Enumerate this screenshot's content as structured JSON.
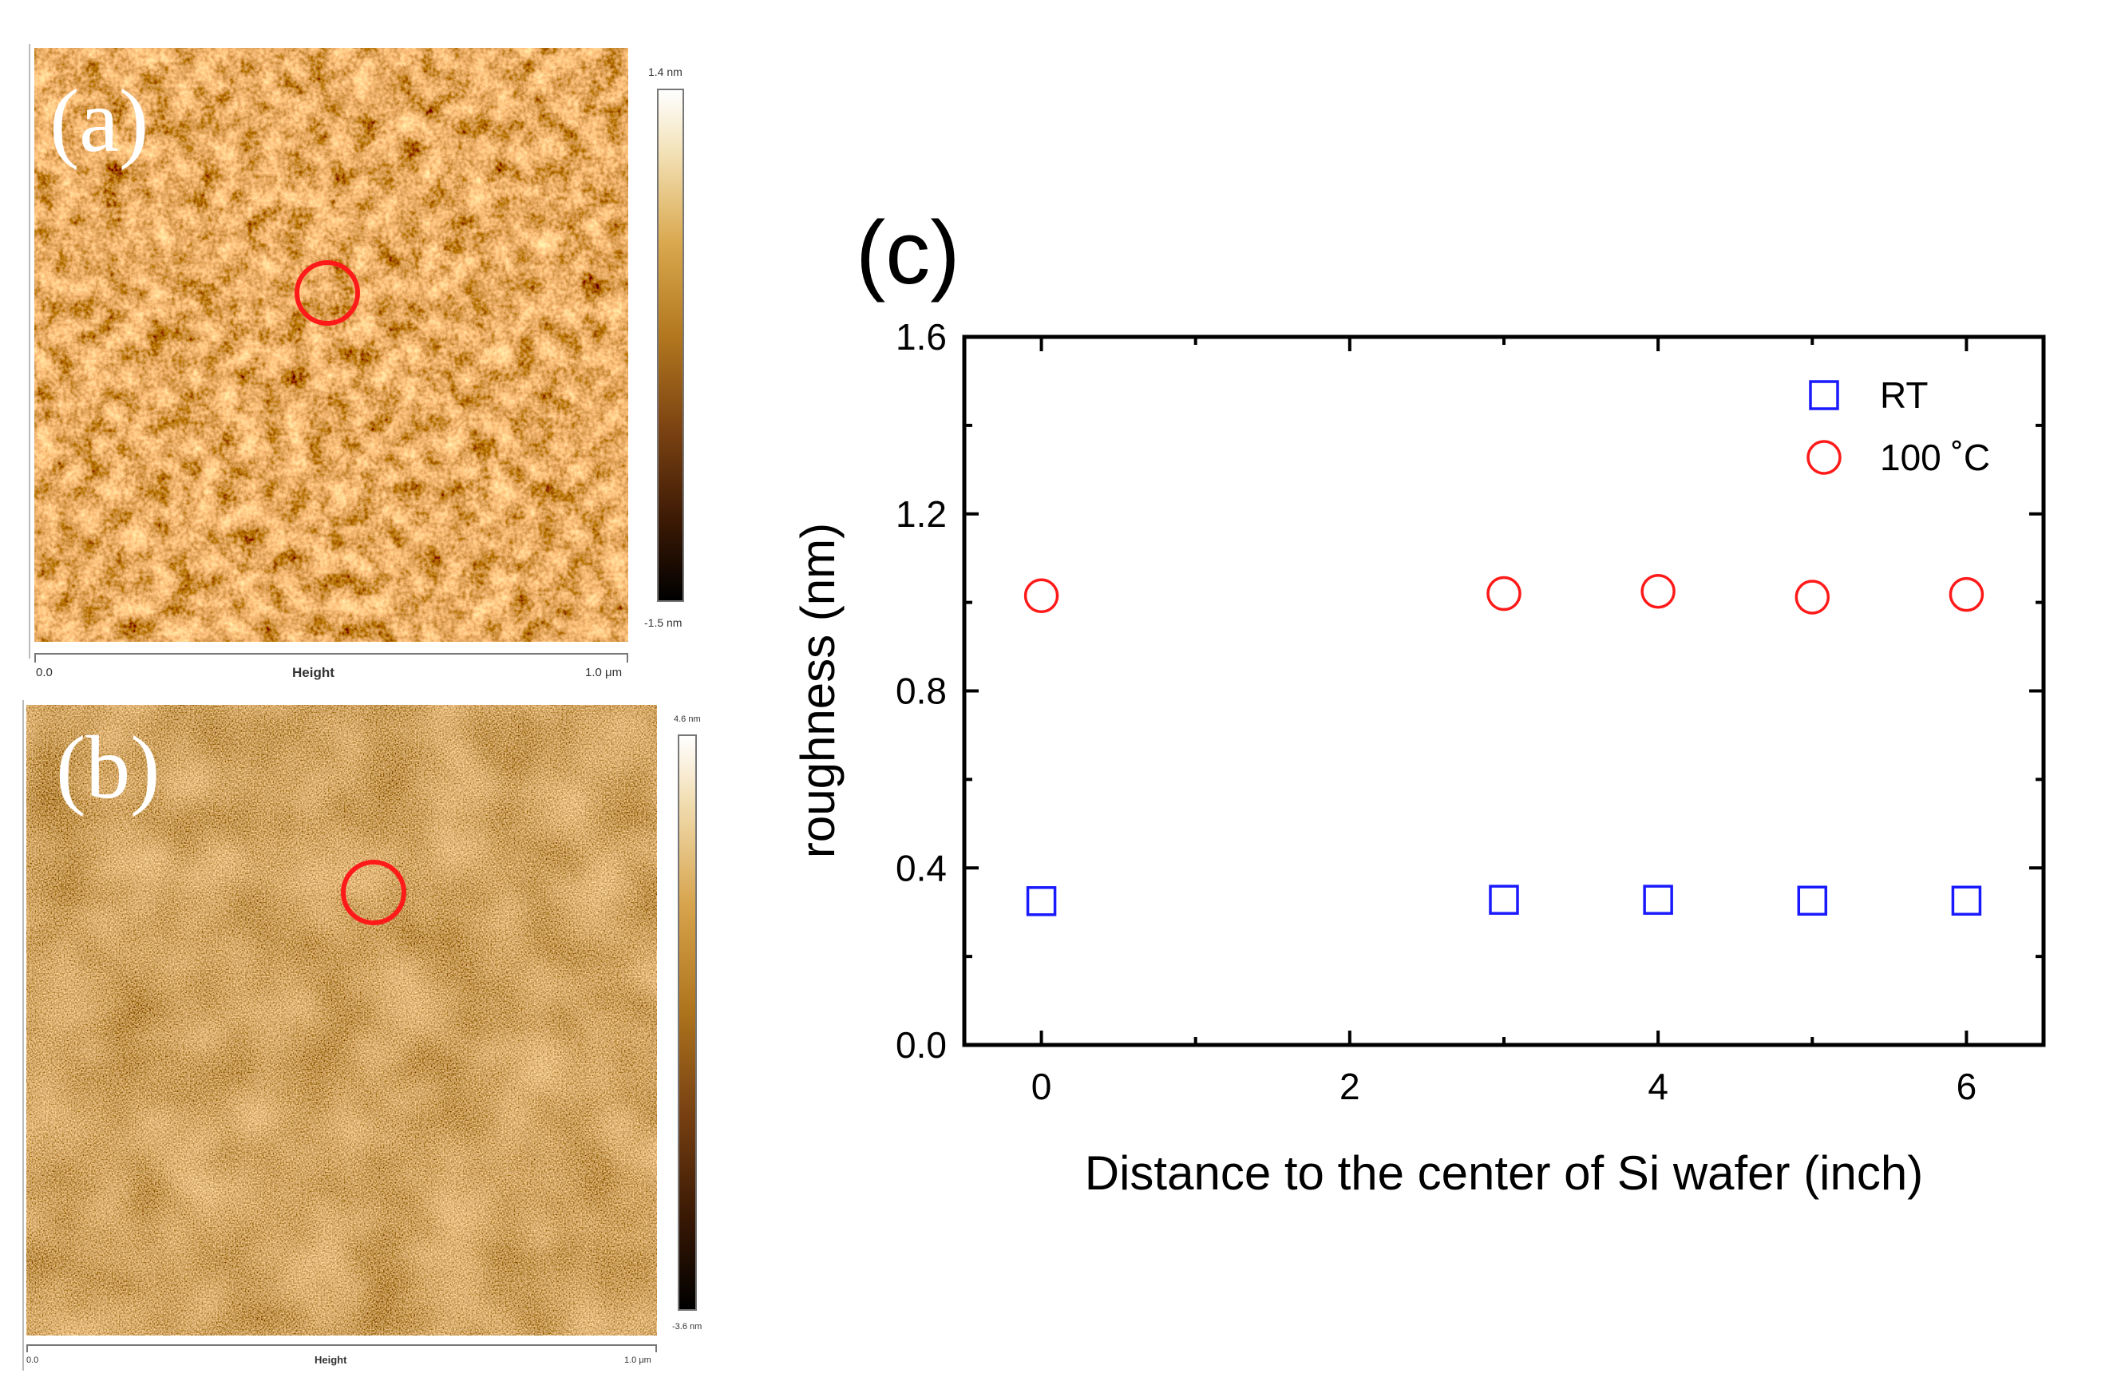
{
  "panel_a": {
    "label": "(a)",
    "colorbar_max": "1.4 nm",
    "colorbar_min": "-1.5 nm",
    "x_start": "0.0",
    "x_end": "1.0 μm",
    "axis_title": "Height",
    "colors": {
      "marker": "#ff1a1a"
    }
  },
  "panel_b": {
    "label": "(b)",
    "colorbar_max": "4.6 nm",
    "colorbar_min": "-3.6 nm",
    "x_start": "0.0",
    "x_end": "1.0 μm",
    "axis_title": "Height",
    "colors": {
      "marker": "#ff1a1a"
    }
  },
  "chart_data": {
    "type": "scatter",
    "panel_label": "(c)",
    "title": "",
    "xlabel": "Distance to the center of Si wafer (inch)",
    "ylabel": "roughness (nm)",
    "xlim": [
      -0.5,
      6.5
    ],
    "ylim": [
      0.0,
      1.6
    ],
    "xticks": [
      0,
      2,
      4,
      6
    ],
    "yticks": [
      0.0,
      0.4,
      0.8,
      1.2,
      1.6
    ],
    "xtick_labels": [
      "0",
      "2",
      "4",
      "6"
    ],
    "ytick_labels": [
      "0.0",
      "0.4",
      "0.8",
      "1.2",
      "1.6"
    ],
    "legend_position": "top-right",
    "series": [
      {
        "name": "RT",
        "marker": "square",
        "color": "#1a1aff",
        "x": [
          0,
          3,
          4,
          5,
          6
        ],
        "y": [
          0.325,
          0.328,
          0.328,
          0.326,
          0.326
        ]
      },
      {
        "name": "100 ˚C",
        "marker": "circle",
        "color": "#ff1a1a",
        "x": [
          0,
          3,
          4,
          5,
          6
        ],
        "y": [
          1.015,
          1.02,
          1.025,
          1.012,
          1.018
        ]
      }
    ]
  }
}
